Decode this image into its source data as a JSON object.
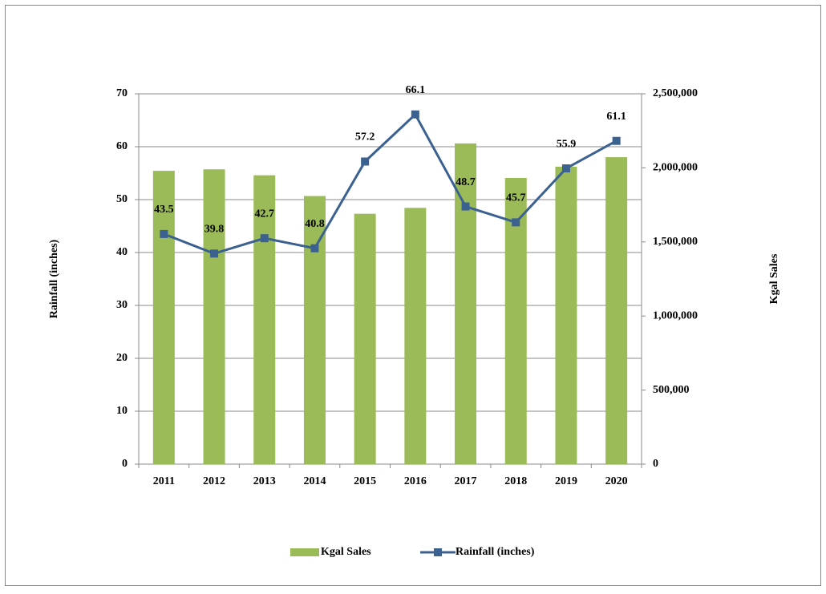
{
  "chart_data": {
    "type": "bar-line",
    "categories": [
      "2011",
      "2012",
      "2013",
      "2014",
      "2015",
      "2016",
      "2017",
      "2018",
      "2019",
      "2020"
    ],
    "series": [
      {
        "name": "Kgal Sales",
        "type": "bar",
        "axis": "y2",
        "color": "#9bbb59",
        "values": [
          1980000,
          1990000,
          1950000,
          1810000,
          1690000,
          1730000,
          2165000,
          1932000,
          2008000,
          2072000
        ]
      },
      {
        "name": "Rainfall (inches)",
        "type": "line",
        "axis": "y",
        "color": "#3b6190",
        "values": [
          43.5,
          39.8,
          42.7,
          40.8,
          57.2,
          66.1,
          48.7,
          45.7,
          55.9,
          61.1
        ]
      }
    ],
    "ylabel": "Rainfall (inches)",
    "y2label": "Kgal Sales",
    "ylim": [
      0,
      70
    ],
    "yticks": [
      0,
      10,
      20,
      30,
      40,
      50,
      60,
      70
    ],
    "y2lim": [
      0,
      2500000
    ],
    "y2ticks": [
      0,
      {
        "value": 500000,
        "label": "500,000"
      },
      {
        "value": 1000000,
        "label": "1,000,000"
      },
      {
        "value": 1500000,
        "label": "1,500,000"
      },
      {
        "value": 2000000,
        "label": "2,000,000"
      },
      {
        "value": 2500000,
        "label": "2,500,000"
      }
    ],
    "grid": true,
    "legend": "bottom"
  }
}
